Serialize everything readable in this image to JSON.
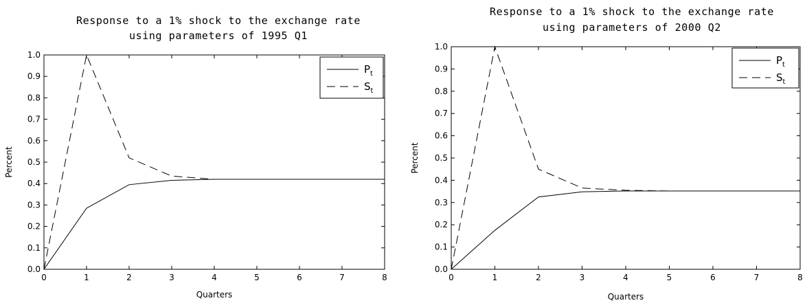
{
  "chart_data": [
    {
      "type": "line",
      "title_line1": "Response to a 1% shock to the exchange rate",
      "title_line2": "using parameters of 1995 Q1",
      "xlabel": "Quarters",
      "ylabel": "Percent",
      "xlim": [
        0,
        8
      ],
      "ylim": [
        0,
        1.0
      ],
      "x_ticks": [
        "0",
        "1",
        "2",
        "3",
        "4",
        "5",
        "6",
        "7",
        "8"
      ],
      "y_ticks": [
        "0.0",
        "0.1",
        "0.2",
        "0.3",
        "0.4",
        "0.5",
        "0.6",
        "0.7",
        "0.8",
        "0.9",
        "1.0"
      ],
      "legend_position": "top-right",
      "series": [
        {
          "name": "P",
          "subscript": "t",
          "style": "solid",
          "x": [
            0,
            1,
            2,
            3,
            4,
            5,
            6,
            7,
            8
          ],
          "values": [
            0.0,
            0.285,
            0.395,
            0.415,
            0.42,
            0.42,
            0.42,
            0.42,
            0.42
          ]
        },
        {
          "name": "S",
          "subscript": "t",
          "style": "dashed",
          "x": [
            0,
            1,
            2,
            3,
            4,
            5,
            6,
            7,
            8
          ],
          "values": [
            0.0,
            1.0,
            0.52,
            0.435,
            0.42,
            0.42,
            0.42,
            0.42,
            0.42
          ]
        }
      ]
    },
    {
      "type": "line",
      "title_line1": "Response to a 1% shock to the exchange rate",
      "title_line2": "using parameters of 2000 Q2",
      "xlabel": "Quarters",
      "ylabel": "Percent",
      "xlim": [
        0,
        8
      ],
      "ylim": [
        0,
        1.0
      ],
      "x_ticks": [
        "0",
        "1",
        "2",
        "3",
        "4",
        "5",
        "6",
        "7",
        "8"
      ],
      "y_ticks": [
        "0.0",
        "0.1",
        "0.2",
        "0.3",
        "0.4",
        "0.5",
        "0.6",
        "0.7",
        "0.8",
        "0.9",
        "1.0"
      ],
      "legend_position": "top-right",
      "series": [
        {
          "name": "P",
          "subscript": "t",
          "style": "solid",
          "x": [
            0,
            1,
            2,
            3,
            4,
            5,
            6,
            7,
            8
          ],
          "values": [
            0.0,
            0.175,
            0.325,
            0.348,
            0.352,
            0.352,
            0.352,
            0.352,
            0.352
          ]
        },
        {
          "name": "S",
          "subscript": "t",
          "style": "dashed",
          "x": [
            0,
            1,
            2,
            3,
            4,
            5,
            6,
            7,
            8
          ],
          "values": [
            0.0,
            1.0,
            0.45,
            0.365,
            0.355,
            0.352,
            0.352,
            0.352,
            0.352
          ]
        }
      ]
    }
  ]
}
